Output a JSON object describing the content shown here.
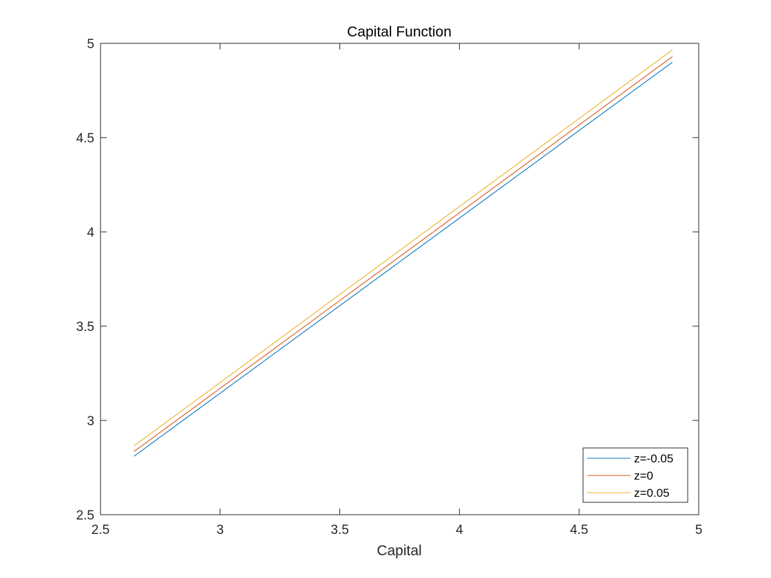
{
  "chart_data": {
    "type": "line",
    "title": "Capital Function",
    "xlabel": "Capital",
    "ylabel": "",
    "xlim": [
      2.5,
      5
    ],
    "ylim": [
      2.5,
      5
    ],
    "xticks": [
      2.5,
      3,
      3.5,
      4,
      4.5,
      5
    ],
    "yticks": [
      2.5,
      3,
      3.5,
      4,
      4.5,
      5
    ],
    "xtick_labels": [
      "2.5",
      "3",
      "3.5",
      "4",
      "4.5",
      "5"
    ],
    "ytick_labels": [
      "2.5",
      "3",
      "3.5",
      "4",
      "4.5",
      "5"
    ],
    "grid": false,
    "box": true,
    "legend_position": "bottom-right",
    "series": [
      {
        "name": "z=-0.05",
        "color": "#0072BD",
        "x": [
          2.64,
          4.89
        ],
        "y": [
          2.81,
          4.9
        ]
      },
      {
        "name": "z=0",
        "color": "#D95319",
        "x": [
          2.64,
          4.89
        ],
        "y": [
          2.835,
          4.93
        ]
      },
      {
        "name": "z=0.05",
        "color": "#EDB120",
        "x": [
          2.64,
          4.89
        ],
        "y": [
          2.865,
          4.965
        ]
      }
    ]
  }
}
